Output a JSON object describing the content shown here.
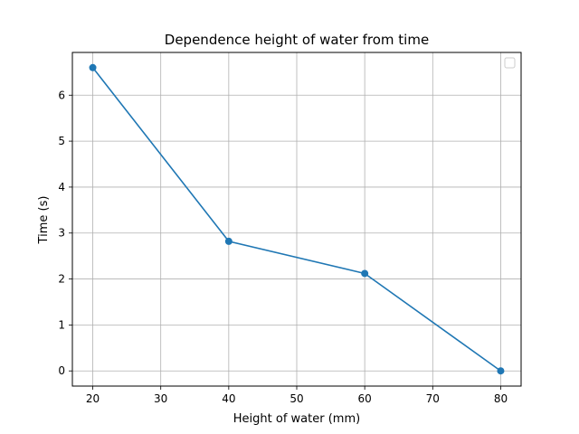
{
  "chart_data": {
    "type": "line",
    "title": "Dependence height of water from time",
    "xlabel": "Height of water (mm)",
    "ylabel": "Time (s)",
    "x": [
      20,
      40,
      60,
      80
    ],
    "series": [
      {
        "values": [
          6.6,
          2.82,
          2.12,
          0.0
        ]
      }
    ],
    "xlim": [
      17,
      83
    ],
    "ylim": [
      -0.33,
      6.93
    ],
    "xticks": [
      "20",
      "30",
      "40",
      "50",
      "60",
      "70",
      "80"
    ],
    "yticks": [
      "0",
      "1",
      "2",
      "3",
      "4",
      "5",
      "6"
    ],
    "grid": true,
    "markers": true,
    "legend": {
      "placement": "top-right",
      "entries": []
    },
    "colors": {
      "series": "#1f77b4",
      "grid": "#b0b0b0",
      "axes": "#000000"
    }
  }
}
